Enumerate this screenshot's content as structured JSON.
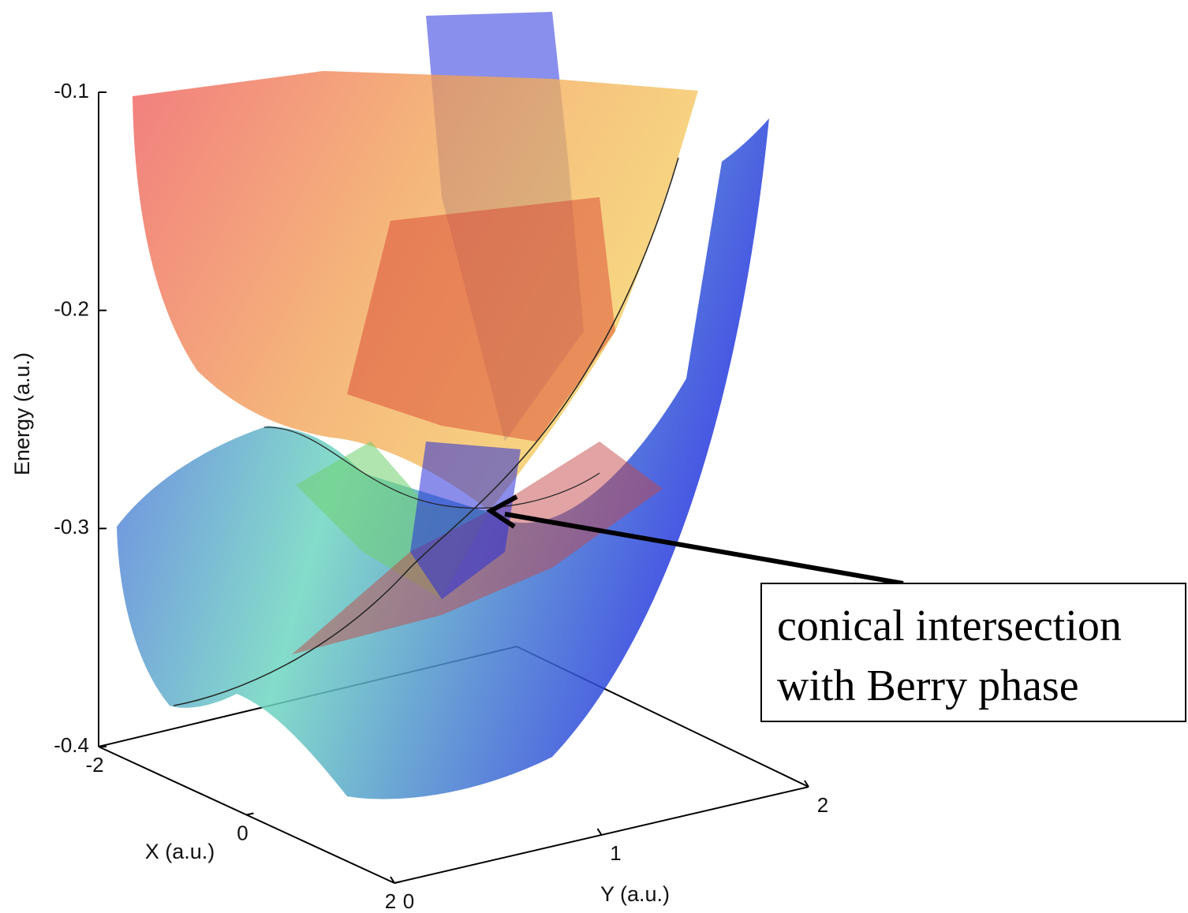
{
  "chart_data": {
    "type": "surface3d",
    "zlabel": "Energy (a.u.)",
    "xlabel": "X (a.u.)",
    "ylabel": "Y (a.u.)",
    "zlim": [
      -0.4,
      -0.1
    ],
    "zticks": [
      -0.4,
      -0.3,
      -0.2,
      -0.1
    ],
    "xlim": [
      -2,
      2
    ],
    "xticks": [
      -2,
      0,
      2
    ],
    "ylim": [
      0,
      2
    ],
    "yticks": [
      0,
      1,
      2
    ],
    "annotation": [
      "conical intersection",
      "with Berry phase"
    ]
  }
}
